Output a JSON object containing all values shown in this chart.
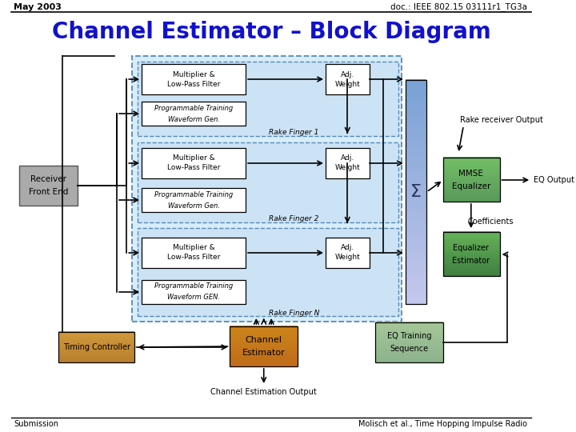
{
  "title": "Channel Estimator – Block Diagram",
  "header_left": "May 2003",
  "header_right": "doc.: IEEE 802.15 03111r1_TG3a",
  "footer_left": "Submission",
  "footer_right": "Molisch et al., Time Hopping Impulse Radio",
  "bg_color": "#ffffff",
  "title_color": "#1111cc",
  "light_blue_bg": "#d8edf8",
  "blue_bar_color_top": "#7bafd4",
  "blue_bar_color_bot": "#2a5a8a",
  "mmse_color": "#6b9f6b",
  "eq_estimator_color": "#4a8a4a",
  "timing_color_top": "#d49a4a",
  "timing_color_bot": "#8a5a10",
  "channel_est_color_top": "#d4843a",
  "channel_est_color_bot": "#8a4a10",
  "eq_training_color": "#9abf9a",
  "receiver_color": "#aaaaaa",
  "inner_box_color": "#ffffff",
  "dashed_blue": "#5588bb"
}
